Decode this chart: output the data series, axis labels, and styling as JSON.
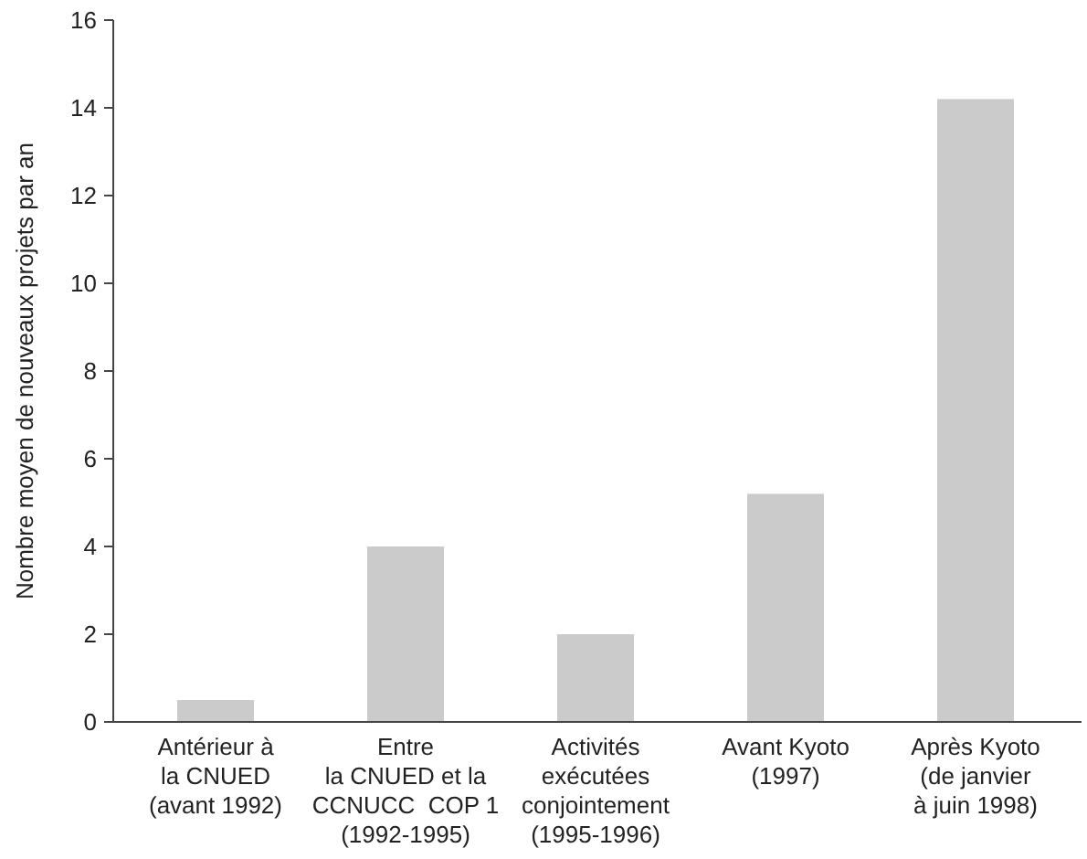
{
  "chart_data": {
    "type": "bar",
    "ylabel": "Nombre moyen de nouveaux projets par an",
    "categories": [
      "Antérieur à\nla CNUED\n(avant 1992)",
      "Entre\nla CNUED et la\nCCNUCC  COP 1\n(1992-1995)",
      "Activités\nexécutées\nconjointement\n(1995-1996)",
      "Avant Kyoto\n(1997)",
      "Après Kyoto\n(de janvier\nà juin 1998)"
    ],
    "values": [
      0.5,
      4,
      2,
      5.2,
      14.2
    ],
    "color": "#cbcbcb",
    "ylim": [
      0,
      16
    ],
    "yticks": [
      0,
      2,
      4,
      6,
      8,
      10,
      12,
      14,
      16
    ]
  }
}
